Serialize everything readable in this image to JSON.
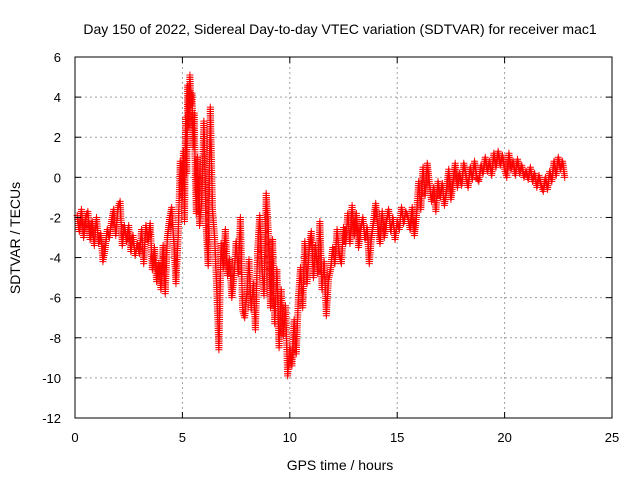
{
  "chart_data": {
    "type": "scatter",
    "title": "Day 150 of 2022, Sidereal Day-to-day VTEC variation (SDTVAR) for receiver mac1",
    "xlabel": "GPS time / hours",
    "ylabel": "SDTVAR / TECUs",
    "xlim": [
      0,
      25
    ],
    "ylim": [
      -12,
      6
    ],
    "xticks": [
      "0",
      "5",
      "10",
      "15",
      "20",
      "25"
    ],
    "yticks": [
      "-12",
      "-10",
      "-8",
      "-6",
      "-4",
      "-2",
      "0",
      "2",
      "4",
      "6"
    ],
    "grid": true,
    "marker": "+",
    "color": "#ff0000",
    "series": [
      {
        "name": "SDTVAR",
        "points": [
          [
            0.1,
            -1.9
          ],
          [
            0.2,
            -2.7
          ],
          [
            0.3,
            -1.6
          ],
          [
            0.4,
            -3.0
          ],
          [
            0.5,
            -2.0
          ],
          [
            0.6,
            -1.7
          ],
          [
            0.7,
            -3.1
          ],
          [
            0.8,
            -2.2
          ],
          [
            0.9,
            -3.4
          ],
          [
            1.0,
            -2.0
          ],
          [
            1.1,
            -3.3
          ],
          [
            1.2,
            -2.8
          ],
          [
            1.3,
            -4.2
          ],
          [
            1.4,
            -3.6
          ],
          [
            1.5,
            -2.6
          ],
          [
            1.6,
            -3.0
          ],
          [
            1.7,
            -2.2
          ],
          [
            1.8,
            -1.6
          ],
          [
            1.9,
            -2.9
          ],
          [
            2.0,
            -1.5
          ],
          [
            2.1,
            -1.2
          ],
          [
            2.2,
            -3.4
          ],
          [
            2.3,
            -2.4
          ],
          [
            2.4,
            -3.2
          ],
          [
            2.5,
            -2.4
          ],
          [
            2.6,
            -3.7
          ],
          [
            2.7,
            -2.9
          ],
          [
            2.8,
            -3.9
          ],
          [
            2.9,
            -3.3
          ],
          [
            3.0,
            -3.8
          ],
          [
            3.1,
            -2.6
          ],
          [
            3.2,
            -4.3
          ],
          [
            3.3,
            -2.4
          ],
          [
            3.4,
            -3.2
          ],
          [
            3.5,
            -2.3
          ],
          [
            3.6,
            -4.6
          ],
          [
            3.7,
            -3.5
          ],
          [
            3.8,
            -5.2
          ],
          [
            3.9,
            -4.3
          ],
          [
            4.0,
            -5.6
          ],
          [
            4.1,
            -3.4
          ],
          [
            4.2,
            -5.8
          ],
          [
            4.3,
            -3.0
          ],
          [
            4.4,
            -2.1
          ],
          [
            4.5,
            -1.5
          ],
          [
            4.6,
            -3.2
          ],
          [
            4.7,
            -5.3
          ],
          [
            4.8,
            -3.0
          ],
          [
            4.9,
            0.8
          ],
          [
            5.0,
            -1.0
          ],
          [
            5.05,
            1.3
          ],
          [
            5.1,
            -2.2
          ],
          [
            5.15,
            3.0
          ],
          [
            5.2,
            0.2
          ],
          [
            5.25,
            4.6
          ],
          [
            5.3,
            2.5
          ],
          [
            5.35,
            5.1
          ],
          [
            5.4,
            3.6
          ],
          [
            5.45,
            4.2
          ],
          [
            5.5,
            1.5
          ],
          [
            5.55,
            3.2
          ],
          [
            5.6,
            0.2
          ],
          [
            5.65,
            -1.8
          ],
          [
            5.7,
            1.0
          ],
          [
            5.75,
            -0.8
          ],
          [
            5.8,
            -2.4
          ],
          [
            5.9,
            -1.2
          ],
          [
            6.0,
            2.8
          ],
          [
            6.05,
            0.5
          ],
          [
            6.1,
            -2.4
          ],
          [
            6.2,
            -4.4
          ],
          [
            6.3,
            3.5
          ],
          [
            6.35,
            1.0
          ],
          [
            6.4,
            -1.6
          ],
          [
            6.5,
            -3.0
          ],
          [
            6.6,
            -5.6
          ],
          [
            6.7,
            -8.6
          ],
          [
            6.8,
            -3.3
          ],
          [
            6.9,
            -4.5
          ],
          [
            7.0,
            -2.6
          ],
          [
            7.1,
            -4.9
          ],
          [
            7.2,
            -4.1
          ],
          [
            7.3,
            -6.0
          ],
          [
            7.4,
            -5.0
          ],
          [
            7.5,
            -3.2
          ],
          [
            7.6,
            -4.8
          ],
          [
            7.7,
            -2.0
          ],
          [
            7.8,
            -6.6
          ],
          [
            7.9,
            -7.0
          ],
          [
            8.0,
            -5.8
          ],
          [
            8.1,
            -4.1
          ],
          [
            8.2,
            -6.6
          ],
          [
            8.3,
            -5.3
          ],
          [
            8.4,
            -7.6
          ],
          [
            8.5,
            -3.7
          ],
          [
            8.6,
            -1.9
          ],
          [
            8.7,
            -4.4
          ],
          [
            8.8,
            -5.9
          ],
          [
            8.9,
            -0.8
          ],
          [
            9.0,
            -2.7
          ],
          [
            9.1,
            -6.5
          ],
          [
            9.2,
            -3.1
          ],
          [
            9.3,
            -7.3
          ],
          [
            9.4,
            -4.6
          ],
          [
            9.5,
            -8.5
          ],
          [
            9.6,
            -5.6
          ],
          [
            9.7,
            -7.9
          ],
          [
            9.8,
            -6.4
          ],
          [
            9.9,
            -9.9
          ],
          [
            10.0,
            -8.5
          ],
          [
            10.1,
            -9.4
          ],
          [
            10.2,
            -7.1
          ],
          [
            10.3,
            -8.8
          ],
          [
            10.4,
            -6.0
          ],
          [
            10.5,
            -4.5
          ],
          [
            10.6,
            -6.5
          ],
          [
            10.7,
            -3.2
          ],
          [
            10.8,
            -5.3
          ],
          [
            10.9,
            -3.6
          ],
          [
            11.0,
            -2.7
          ],
          [
            11.1,
            -5.0
          ],
          [
            11.2,
            -3.4
          ],
          [
            11.3,
            -4.8
          ],
          [
            11.4,
            -2.2
          ],
          [
            11.5,
            -5.6
          ],
          [
            11.6,
            -4.2
          ],
          [
            11.7,
            -6.9
          ],
          [
            11.8,
            -5.1
          ],
          [
            11.9,
            -4.6
          ],
          [
            12.0,
            -3.5
          ],
          [
            12.1,
            -4.3
          ],
          [
            12.2,
            -2.6
          ],
          [
            12.3,
            -3.8
          ],
          [
            12.4,
            -4.3
          ],
          [
            12.5,
            -2.5
          ],
          [
            12.6,
            -3.3
          ],
          [
            12.7,
            -1.8
          ],
          [
            12.8,
            -3.3
          ],
          [
            12.9,
            -1.4
          ],
          [
            13.0,
            -2.9
          ],
          [
            13.1,
            -1.8
          ],
          [
            13.2,
            -3.5
          ],
          [
            13.3,
            -2.6
          ],
          [
            13.4,
            -2.0
          ],
          [
            13.5,
            -3.1
          ],
          [
            13.6,
            -2.5
          ],
          [
            13.7,
            -4.3
          ],
          [
            13.8,
            -3.0
          ],
          [
            13.9,
            -2.2
          ],
          [
            14.0,
            -1.3
          ],
          [
            14.1,
            -2.5
          ],
          [
            14.2,
            -3.3
          ],
          [
            14.3,
            -1.7
          ],
          [
            14.4,
            -3.0
          ],
          [
            14.5,
            -2.2
          ],
          [
            14.6,
            -1.6
          ],
          [
            14.7,
            -2.7
          ],
          [
            14.8,
            -2.0
          ],
          [
            14.9,
            -3.1
          ],
          [
            15.0,
            -2.2
          ],
          [
            15.1,
            -2.6
          ],
          [
            15.2,
            -1.5
          ],
          [
            15.3,
            -2.3
          ],
          [
            15.4,
            -1.7
          ],
          [
            15.5,
            -2.0
          ],
          [
            15.6,
            -2.6
          ],
          [
            15.7,
            -1.5
          ],
          [
            15.8,
            -2.9
          ],
          [
            15.9,
            -1.9
          ],
          [
            16.0,
            -0.2
          ],
          [
            16.1,
            -1.6
          ],
          [
            16.2,
            0.5
          ],
          [
            16.3,
            -0.9
          ],
          [
            16.4,
            0.7
          ],
          [
            16.5,
            -0.3
          ],
          [
            16.6,
            -1.2
          ],
          [
            16.7,
            -0.5
          ],
          [
            16.8,
            -1.7
          ],
          [
            16.9,
            -0.2
          ],
          [
            17.0,
            -1.0
          ],
          [
            17.1,
            -0.3
          ],
          [
            17.2,
            -1.4
          ],
          [
            17.3,
            -0.6
          ],
          [
            17.4,
            0.4
          ],
          [
            17.5,
            -1.1
          ],
          [
            17.6,
            -0.3
          ],
          [
            17.7,
            0.7
          ],
          [
            17.8,
            -0.5
          ],
          [
            17.9,
            0.2
          ],
          [
            18.0,
            -0.4
          ],
          [
            18.1,
            0.7
          ],
          [
            18.2,
            0.1
          ],
          [
            18.3,
            -0.5
          ],
          [
            18.4,
            0.5
          ],
          [
            18.5,
            -0.1
          ],
          [
            18.6,
            0.8
          ],
          [
            18.7,
            0.0
          ],
          [
            18.8,
            -0.2
          ],
          [
            18.9,
            0.6
          ],
          [
            19.0,
            0.2
          ],
          [
            19.1,
            1.0
          ],
          [
            19.2,
            0.3
          ],
          [
            19.3,
            0.8
          ],
          [
            19.4,
            0.1
          ],
          [
            19.5,
            1.2
          ],
          [
            19.6,
            0.5
          ],
          [
            19.7,
            1.3
          ],
          [
            19.8,
            0.6
          ],
          [
            19.9,
            1.1
          ],
          [
            20.0,
            0.4
          ],
          [
            20.1,
            0.0
          ],
          [
            20.2,
            1.2
          ],
          [
            20.3,
            0.4
          ],
          [
            20.4,
            0.8
          ],
          [
            20.5,
            0.1
          ],
          [
            20.6,
            0.9
          ],
          [
            20.7,
            0.2
          ],
          [
            20.8,
            0.6
          ],
          [
            20.9,
            0.0
          ],
          [
            21.0,
            0.3
          ],
          [
            21.1,
            -0.1
          ],
          [
            21.2,
            0.5
          ],
          [
            21.3,
            -0.2
          ],
          [
            21.4,
            0.2
          ],
          [
            21.5,
            -0.5
          ],
          [
            21.6,
            0.1
          ],
          [
            21.7,
            -0.4
          ],
          [
            21.8,
            -0.7
          ],
          [
            21.9,
            0.0
          ],
          [
            22.0,
            -0.6
          ],
          [
            22.1,
            0.3
          ],
          [
            22.2,
            -0.2
          ],
          [
            22.3,
            0.8
          ],
          [
            22.4,
            0.1
          ],
          [
            22.5,
            1.0
          ],
          [
            22.6,
            0.4
          ],
          [
            22.7,
            0.8
          ],
          [
            22.8,
            0.0
          ]
        ]
      }
    ]
  }
}
